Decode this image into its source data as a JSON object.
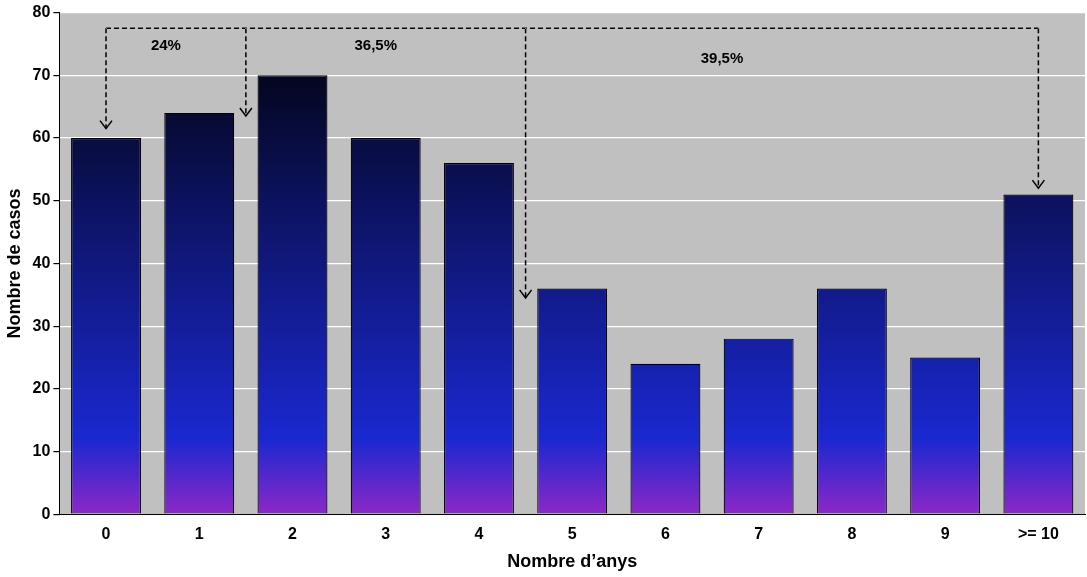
{
  "chart_data": {
    "type": "bar",
    "categories": [
      "0",
      "1",
      "2",
      "3",
      "4",
      "5",
      "6",
      "7",
      "8",
      "9",
      ">= 10"
    ],
    "values": [
      60,
      64,
      70,
      60,
      56,
      36,
      24,
      28,
      36,
      25,
      51
    ],
    "color": "#1a28d0",
    "xlabel": "Nombre d’anys",
    "ylabel": "Nombre de casos",
    "ylim": [
      0,
      80
    ],
    "yticks": [
      0,
      10,
      20,
      30,
      40,
      50,
      60,
      70,
      80
    ],
    "grid": "y",
    "annotations": [
      "24%",
      "36,5%",
      "39,5%"
    ]
  }
}
